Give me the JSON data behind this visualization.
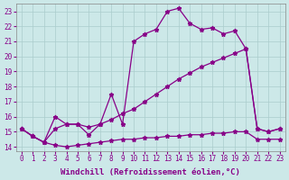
{
  "bg_color": "#cce8e8",
  "grid_color": "#aacccc",
  "line_color": "#880088",
  "xlabel": "Windchill (Refroidissement éolien,°C)",
  "xlim_min": -0.5,
  "xlim_max": 23.5,
  "ylim_min": 13.7,
  "ylim_max": 23.5,
  "yticks": [
    14,
    15,
    16,
    17,
    18,
    19,
    20,
    21,
    22,
    23
  ],
  "xticks": [
    0,
    1,
    2,
    3,
    4,
    5,
    6,
    7,
    8,
    9,
    10,
    11,
    12,
    13,
    14,
    15,
    16,
    17,
    18,
    19,
    20,
    21,
    22,
    23
  ],
  "line1_x": [
    0,
    1,
    2,
    3,
    4,
    5,
    6,
    7,
    8,
    9,
    10,
    11,
    12,
    13,
    14,
    15,
    16,
    17,
    18,
    19,
    20,
    21,
    22,
    23
  ],
  "line1_y": [
    15.2,
    14.7,
    14.3,
    14.1,
    14.0,
    14.1,
    14.2,
    14.3,
    14.4,
    14.5,
    14.5,
    14.6,
    14.6,
    14.7,
    14.7,
    14.8,
    14.8,
    14.9,
    14.9,
    15.0,
    15.0,
    14.5,
    14.5,
    14.5
  ],
  "line2_x": [
    0,
    1,
    2,
    3,
    4,
    5,
    6,
    7,
    8,
    9,
    10,
    11,
    12,
    13,
    14,
    15,
    16,
    17,
    18,
    19,
    20,
    21,
    22,
    23
  ],
  "line2_y": [
    15.2,
    14.7,
    14.3,
    15.2,
    15.5,
    15.5,
    15.3,
    15.5,
    15.8,
    16.2,
    16.5,
    17.0,
    17.5,
    18.0,
    18.5,
    18.9,
    19.3,
    19.6,
    19.9,
    20.2,
    20.5,
    15.2,
    15.0,
    15.2
  ],
  "line3_x": [
    0,
    1,
    2,
    3,
    4,
    5,
    6,
    7,
    8,
    9,
    10,
    11,
    12,
    13,
    14,
    15,
    16,
    17,
    18,
    19,
    20,
    21,
    22,
    23
  ],
  "line3_y": [
    15.2,
    14.7,
    14.3,
    16.0,
    15.5,
    15.5,
    14.8,
    15.5,
    17.5,
    15.5,
    21.0,
    21.5,
    21.8,
    23.0,
    23.2,
    22.2,
    21.8,
    21.9,
    21.5,
    21.7,
    20.5,
    15.2,
    15.0,
    15.2
  ],
  "marker": "*",
  "markersize": 3.5,
  "linewidth": 0.9,
  "xlabel_fontsize": 6.5,
  "tick_fontsize": 5.5
}
